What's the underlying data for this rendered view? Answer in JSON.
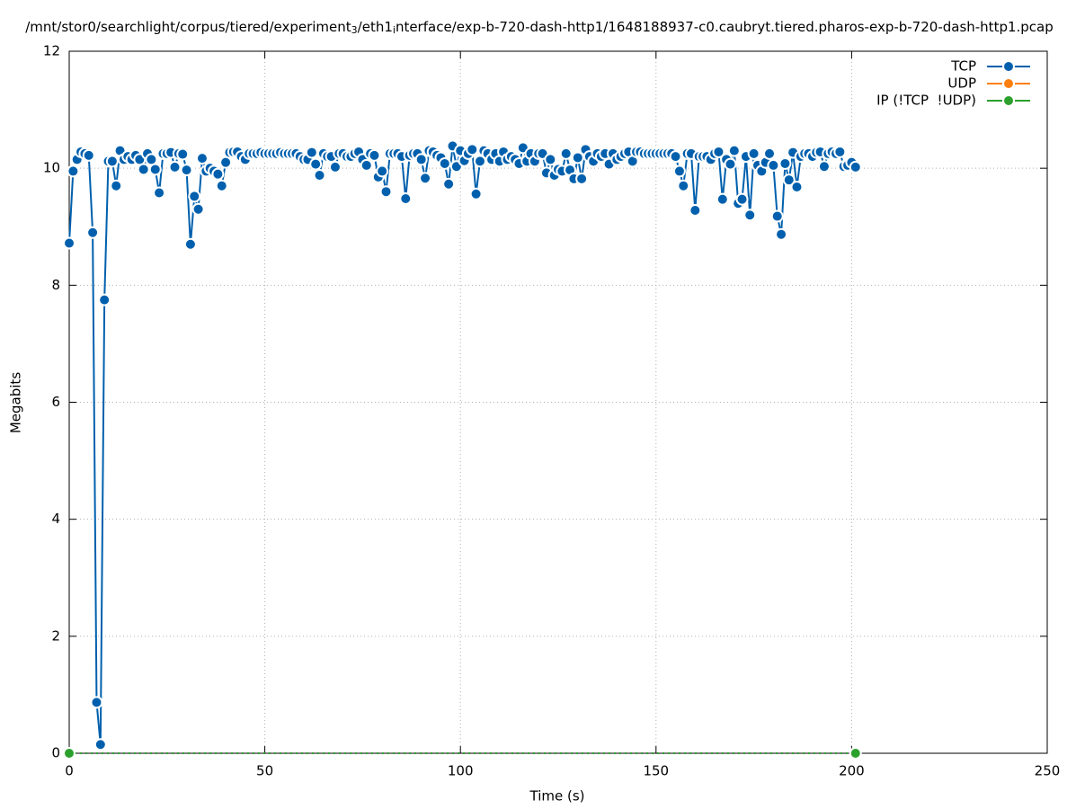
{
  "chart_data": {
    "type": "line",
    "title": [
      "/mnt/stor0/searchlight/corpus/tiered/experiment",
      "3",
      "/eth1",
      "i",
      "nterface/exp-b-720-dash-http1/1648188937-c0.caubryt.tiered.pharos-exp-b-720-dash-http1.pcap"
    ],
    "title_subscripts": [
      false,
      true,
      false,
      true,
      false
    ],
    "x_label": "Time (s)",
    "y_label": "Megabits",
    "xlim": [
      0,
      250
    ],
    "xticks": [
      0,
      50,
      100,
      150,
      200,
      250
    ],
    "ylim": [
      0,
      12
    ],
    "yticks": [
      0,
      2,
      4,
      6,
      8,
      10,
      12
    ],
    "grid": true,
    "legend": "top-right",
    "series": [
      {
        "name": "TCP",
        "color": "#0060ad",
        "point_interval": 1,
        "x": [
          0,
          1,
          2,
          3,
          4,
          5,
          6,
          7,
          8,
          9,
          10,
          11,
          12,
          13,
          14,
          15,
          16,
          17,
          18,
          19,
          20,
          21,
          22,
          23,
          24,
          25,
          26,
          27,
          28,
          29,
          30,
          31,
          32,
          33,
          34,
          35,
          36,
          37,
          38,
          39,
          40,
          41,
          42,
          43,
          44,
          45,
          46,
          47,
          48,
          49,
          50,
          51,
          52,
          53,
          54,
          55,
          56,
          57,
          58,
          59,
          60,
          61,
          62,
          63,
          64,
          65,
          66,
          67,
          68,
          69,
          70,
          71,
          72,
          73,
          74,
          75,
          76,
          77,
          78,
          79,
          80,
          81,
          82,
          83,
          84,
          85,
          86,
          87,
          88,
          89,
          90,
          91,
          92,
          93,
          94,
          95,
          96,
          97,
          98,
          99,
          100,
          101,
          102,
          103,
          104,
          105,
          106,
          107,
          108,
          109,
          110,
          111,
          112,
          113,
          114,
          115,
          116,
          117,
          118,
          119,
          120,
          121,
          122,
          123,
          124,
          125,
          126,
          127,
          128,
          129,
          130,
          131,
          132,
          133,
          134,
          135,
          136,
          137,
          138,
          139,
          140,
          141,
          142,
          143,
          144,
          145,
          146,
          147,
          148,
          149,
          150,
          151,
          152,
          153,
          154,
          155,
          156,
          157,
          158,
          159,
          160,
          161,
          162,
          163,
          164,
          165,
          166,
          167,
          168,
          169,
          170,
          171,
          172,
          173,
          174,
          175,
          176,
          177,
          178,
          179,
          180,
          181,
          182,
          183,
          184,
          185,
          186,
          187,
          188,
          189,
          190,
          191,
          192,
          193,
          194,
          195,
          196,
          197,
          198,
          199,
          200,
          201
        ],
        "values": [
          8.72,
          9.95,
          10.15,
          10.28,
          10.25,
          10.22,
          8.9,
          0.87,
          0.15,
          7.75,
          10.12,
          10.12,
          9.7,
          10.3,
          10.15,
          10.2,
          10.15,
          10.22,
          10.15,
          9.98,
          10.25,
          10.15,
          9.98,
          9.58,
          10.25,
          10.25,
          10.27,
          10.02,
          10.25,
          10.24,
          9.97,
          8.7,
          9.52,
          9.3,
          10.17,
          9.95,
          10.0,
          9.95,
          9.9,
          9.7,
          10.1,
          10.27,
          10.28,
          10.28,
          10.2,
          10.15,
          10.25,
          10.25,
          10.25,
          10.27,
          10.25,
          10.25,
          10.25,
          10.25,
          10.27,
          10.25,
          10.25,
          10.25,
          10.25,
          10.2,
          10.15,
          10.15,
          10.27,
          10.07,
          9.88,
          10.25,
          10.2,
          10.2,
          10.02,
          10.25,
          10.25,
          10.2,
          10.2,
          10.25,
          10.28,
          10.15,
          10.05,
          10.25,
          10.22,
          9.85,
          9.95,
          9.6,
          10.25,
          10.25,
          10.25,
          10.2,
          9.48,
          10.22,
          10.25,
          10.25,
          10.15,
          9.83,
          10.3,
          10.28,
          10.22,
          10.18,
          10.08,
          9.73,
          10.38,
          10.03,
          10.3,
          10.13,
          10.25,
          10.32,
          9.56,
          10.12,
          10.3,
          10.25,
          10.15,
          10.25,
          10.12,
          10.28,
          10.15,
          10.2,
          10.15,
          10.08,
          10.35,
          10.12,
          10.25,
          10.12,
          10.25,
          10.25,
          9.92,
          10.15,
          9.88,
          9.98,
          9.95,
          10.25,
          9.97,
          9.82,
          10.18,
          9.82,
          10.32,
          10.2,
          10.12,
          10.25,
          10.2,
          10.25,
          10.07,
          10.25,
          10.15,
          10.2,
          10.25,
          10.28,
          10.12,
          10.28,
          10.28,
          10.25,
          10.25,
          10.25,
          10.25,
          10.25,
          10.25,
          10.25,
          10.25,
          10.2,
          9.95,
          9.7,
          10.25,
          10.25,
          9.28,
          10.2,
          10.2,
          10.2,
          10.15,
          10.25,
          10.28,
          9.47,
          10.15,
          10.07,
          10.3,
          9.4,
          9.47,
          10.2,
          9.2,
          10.25,
          10.05,
          9.95,
          10.1,
          10.25,
          10.05,
          9.18,
          8.87,
          10.08,
          9.8,
          10.27,
          9.68,
          10.2,
          10.25,
          10.25,
          10.2,
          10.27,
          10.28,
          10.03,
          10.25,
          10.28,
          10.25,
          10.28,
          10.03,
          10.05,
          10.1,
          10.02
        ]
      },
      {
        "name": "UDP",
        "color": "#ff7f0e",
        "point_interval": 1,
        "x": [],
        "values": []
      },
      {
        "name": "IP (!TCP  !UDP)",
        "color": "#2ca02c",
        "point_interval": 201,
        "x": [
          0,
          1,
          2,
          3,
          4,
          5,
          6,
          7,
          8,
          9,
          10,
          11,
          12,
          13,
          14,
          15,
          16,
          17,
          18,
          19,
          20,
          21,
          22,
          23,
          24,
          25,
          26,
          27,
          28,
          29,
          30,
          31,
          32,
          33,
          34,
          35,
          36,
          37,
          38,
          39,
          40,
          41,
          42,
          43,
          44,
          45,
          46,
          47,
          48,
          49,
          50,
          51,
          52,
          53,
          54,
          55,
          56,
          57,
          58,
          59,
          60,
          61,
          62,
          63,
          64,
          65,
          66,
          67,
          68,
          69,
          70,
          71,
          72,
          73,
          74,
          75,
          76,
          77,
          78,
          79,
          80,
          81,
          82,
          83,
          84,
          85,
          86,
          87,
          88,
          89,
          90,
          91,
          92,
          93,
          94,
          95,
          96,
          97,
          98,
          99,
          100,
          101,
          102,
          103,
          104,
          105,
          106,
          107,
          108,
          109,
          110,
          111,
          112,
          113,
          114,
          115,
          116,
          117,
          118,
          119,
          120,
          121,
          122,
          123,
          124,
          125,
          126,
          127,
          128,
          129,
          130,
          131,
          132,
          133,
          134,
          135,
          136,
          137,
          138,
          139,
          140,
          141,
          142,
          143,
          144,
          145,
          146,
          147,
          148,
          149,
          150,
          151,
          152,
          153,
          154,
          155,
          156,
          157,
          158,
          159,
          160,
          161,
          162,
          163,
          164,
          165,
          166,
          167,
          168,
          169,
          170,
          171,
          172,
          173,
          174,
          175,
          176,
          177,
          178,
          179,
          180,
          181,
          182,
          183,
          184,
          185,
          186,
          187,
          188,
          189,
          190,
          191,
          192,
          193,
          194,
          195,
          196,
          197,
          198,
          199,
          200,
          201
        ],
        "values": [
          0,
          0,
          0,
          0,
          0,
          0,
          0,
          0,
          0,
          0,
          0,
          0,
          0,
          0,
          0,
          0,
          0,
          0,
          0,
          0,
          0,
          0,
          0,
          0,
          0,
          0,
          0,
          0,
          0,
          0,
          0,
          0,
          0,
          0,
          0,
          0,
          0,
          0,
          0,
          0,
          0,
          0,
          0,
          0,
          0,
          0,
          0,
          0,
          0,
          0,
          0,
          0,
          0,
          0,
          0,
          0,
          0,
          0,
          0,
          0,
          0,
          0,
          0,
          0,
          0,
          0,
          0,
          0,
          0,
          0,
          0,
          0,
          0,
          0,
          0,
          0,
          0,
          0,
          0,
          0,
          0,
          0,
          0,
          0,
          0,
          0,
          0,
          0,
          0,
          0,
          0,
          0,
          0,
          0,
          0,
          0,
          0,
          0,
          0,
          0,
          0,
          0,
          0,
          0,
          0,
          0,
          0,
          0,
          0,
          0,
          0,
          0,
          0,
          0,
          0,
          0,
          0,
          0,
          0,
          0,
          0,
          0,
          0,
          0,
          0,
          0,
          0,
          0,
          0,
          0,
          0,
          0,
          0,
          0,
          0,
          0,
          0,
          0,
          0,
          0,
          0,
          0,
          0,
          0,
          0,
          0,
          0,
          0,
          0,
          0,
          0,
          0,
          0,
          0,
          0,
          0,
          0,
          0,
          0,
          0,
          0,
          0,
          0,
          0,
          0,
          0,
          0,
          0,
          0,
          0,
          0,
          0,
          0,
          0,
          0,
          0,
          0,
          0,
          0,
          0,
          0,
          0,
          0,
          0,
          0,
          0,
          0,
          0,
          0,
          0,
          0,
          0,
          0,
          0,
          0,
          0,
          0,
          0,
          0,
          0,
          0,
          0
        ]
      }
    ]
  }
}
